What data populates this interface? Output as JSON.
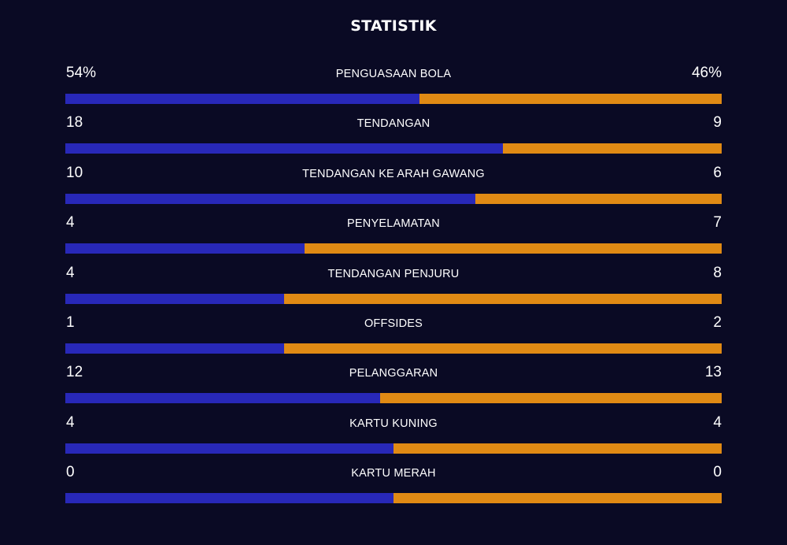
{
  "title": "STATISTIK",
  "colors": {
    "background": "#0a0a24",
    "home_bar": "#2828b8",
    "away_bar": "#e08a14",
    "text": "#ffffff"
  },
  "stats": [
    {
      "label": "PENGUASAAN BOLA",
      "home": "54%",
      "away": "46%",
      "home_share": 0.54
    },
    {
      "label": "TENDANGAN",
      "home": "18",
      "away": "9",
      "home_share": 0.667
    },
    {
      "label": "TENDANGAN KE ARAH GAWANG",
      "home": "10",
      "away": "6",
      "home_share": 0.625
    },
    {
      "label": "PENYELAMATAN",
      "home": "4",
      "away": "7",
      "home_share": 0.364
    },
    {
      "label": "TENDANGAN PENJURU",
      "home": "4",
      "away": "8",
      "home_share": 0.333
    },
    {
      "label": "OFFSIDES",
      "home": "1",
      "away": "2",
      "home_share": 0.333
    },
    {
      "label": "PELANGGARAN",
      "home": "12",
      "away": "13",
      "home_share": 0.48
    },
    {
      "label": "KARTU KUNING",
      "home": "4",
      "away": "4",
      "home_share": 0.5
    },
    {
      "label": "KARTU MERAH",
      "home": "0",
      "away": "0",
      "home_share": 0.5
    }
  ]
}
